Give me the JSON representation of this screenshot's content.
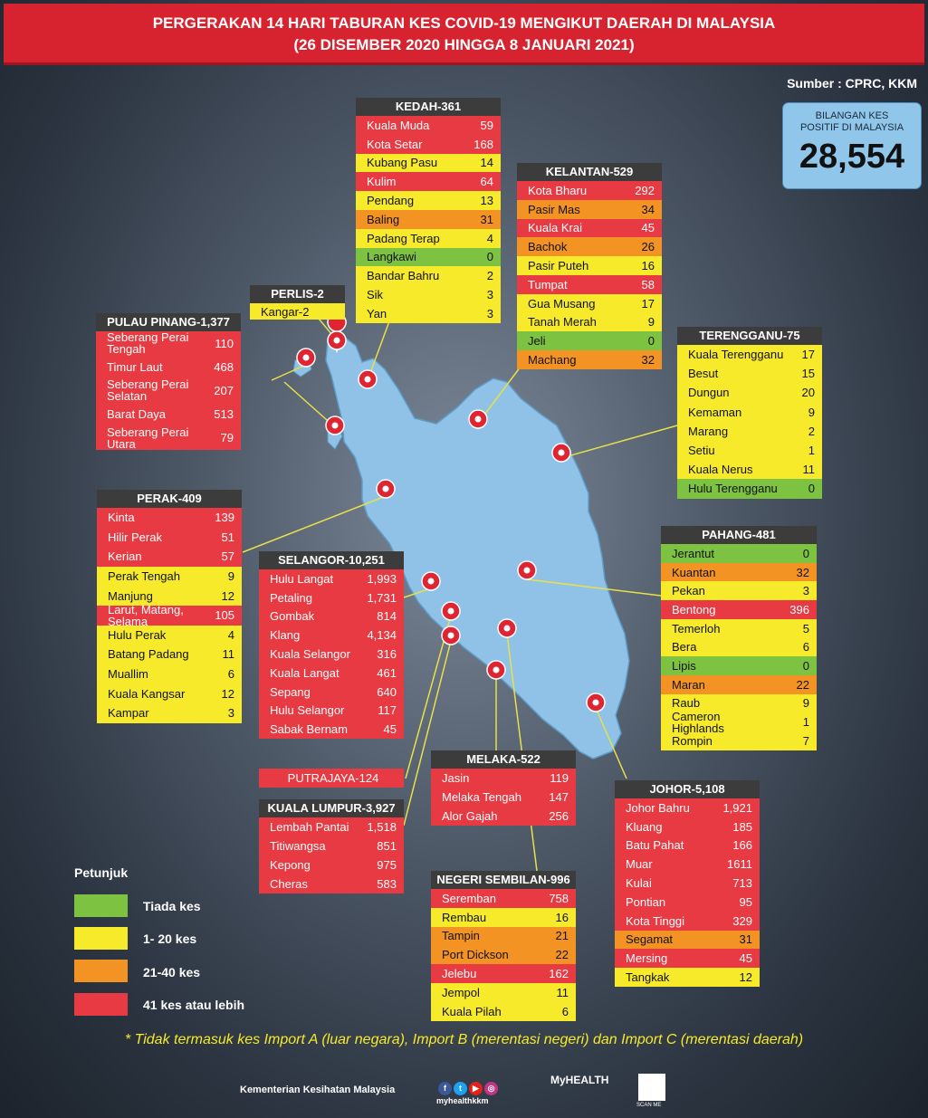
{
  "header": {
    "line1": "PERGERAKAN 14 HARI TABURAN KES COVID-19 MENGIKUT DAERAH DI MALAYSIA",
    "line2": "(26 DISEMBER 2020 HINGGA 8 JANUARI 2021)"
  },
  "source": "Sumber : CPRC, KKM",
  "total": {
    "label_1": "BILANGAN KES",
    "label_2": "POSITIF DI MALAYSIA",
    "value": "28,554"
  },
  "colors": {
    "red": "#e83a42",
    "yellow": "#f6ea2a",
    "orange": "#f39323",
    "green": "#7ec242",
    "map": "#8fc2e6"
  },
  "states": {
    "kedah": {
      "title": "KEDAH-361",
      "rows": [
        {
          "name": "Kuala Muda",
          "value": "59",
          "level": "red"
        },
        {
          "name": "Kota Setar",
          "value": "168",
          "level": "red"
        },
        {
          "name": "Kubang Pasu",
          "value": "14",
          "level": "yel"
        },
        {
          "name": "Kulim",
          "value": "64",
          "level": "red"
        },
        {
          "name": "Pendang",
          "value": "13",
          "level": "yel"
        },
        {
          "name": "Baling",
          "value": "31",
          "level": "org"
        },
        {
          "name": "Padang Terap",
          "value": "4",
          "level": "yel"
        },
        {
          "name": "Langkawi",
          "value": "0",
          "level": "grn"
        },
        {
          "name": "Bandar Bahru",
          "value": "2",
          "level": "yel"
        },
        {
          "name": "Sik",
          "value": "3",
          "level": "yel"
        },
        {
          "name": "Yan",
          "value": "3",
          "level": "yel"
        }
      ]
    },
    "kelantan": {
      "title": "KELANTAN-529",
      "rows": [
        {
          "name": "Kota Bharu",
          "value": "292",
          "level": "red"
        },
        {
          "name": "Pasir Mas",
          "value": "34",
          "level": "org"
        },
        {
          "name": "Kuala Krai",
          "value": "45",
          "level": "red"
        },
        {
          "name": "Bachok",
          "value": "26",
          "level": "org"
        },
        {
          "name": "Pasir Puteh",
          "value": "16",
          "level": "yel"
        },
        {
          "name": "Tumpat",
          "value": "58",
          "level": "red"
        },
        {
          "name": "Gua Musang",
          "value": "17",
          "level": "yel"
        },
        {
          "name": "Tanah Merah",
          "value": "9",
          "level": "yel"
        },
        {
          "name": "Jeli",
          "value": "0",
          "level": "grn"
        },
        {
          "name": "Machang",
          "value": "32",
          "level": "org"
        }
      ]
    },
    "perlis": {
      "title": "PERLIS-2",
      "rows": [
        {
          "name": "Kangar-2",
          "value": "",
          "level": "yel"
        }
      ]
    },
    "pulau_pinang": {
      "title": "PULAU PINANG-1,377",
      "rows": [
        {
          "name": "Seberang Perai Tengah",
          "value": "110",
          "level": "red"
        },
        {
          "name": "Timur Laut",
          "value": "468",
          "level": "red"
        },
        {
          "name": "Seberang Perai Selatan",
          "value": "207",
          "level": "red"
        },
        {
          "name": "Barat Daya",
          "value": "513",
          "level": "red"
        },
        {
          "name": "Seberang Perai Utara",
          "value": "79",
          "level": "red"
        }
      ]
    },
    "terengganu": {
      "title": "TERENGGANU-75",
      "rows": [
        {
          "name": "Kuala Terengganu",
          "value": "17",
          "level": "yel"
        },
        {
          "name": "Besut",
          "value": "15",
          "level": "yel"
        },
        {
          "name": "Dungun",
          "value": "20",
          "level": "yel"
        },
        {
          "name": "Kemaman",
          "value": "9",
          "level": "yel"
        },
        {
          "name": "Marang",
          "value": "2",
          "level": "yel"
        },
        {
          "name": "Setiu",
          "value": "1",
          "level": "yel"
        },
        {
          "name": "Kuala Nerus",
          "value": "11",
          "level": "yel"
        },
        {
          "name": "Hulu Terengganu",
          "value": "0",
          "level": "grn"
        }
      ]
    },
    "perak": {
      "title": "PERAK-409",
      "rows": [
        {
          "name": "Kinta",
          "value": "139",
          "level": "red"
        },
        {
          "name": "Hilir Perak",
          "value": "51",
          "level": "red"
        },
        {
          "name": "Kerian",
          "value": "57",
          "level": "red"
        },
        {
          "name": "Perak Tengah",
          "value": "9",
          "level": "yel"
        },
        {
          "name": "Manjung",
          "value": "12",
          "level": "yel"
        },
        {
          "name": "Larut, Matang, Selama",
          "value": "105",
          "level": "red"
        },
        {
          "name": "Hulu Perak",
          "value": "4",
          "level": "yel"
        },
        {
          "name": "Batang Padang",
          "value": "11",
          "level": "yel"
        },
        {
          "name": "Muallim",
          "value": "6",
          "level": "yel"
        },
        {
          "name": "Kuala Kangsar",
          "value": "12",
          "level": "yel"
        },
        {
          "name": "Kampar",
          "value": "3",
          "level": "yel"
        }
      ]
    },
    "selangor": {
      "title": "SELANGOR-10,251",
      "rows": [
        {
          "name": "Hulu Langat",
          "value": "1,993",
          "level": "red"
        },
        {
          "name": "Petaling",
          "value": "1,731",
          "level": "red"
        },
        {
          "name": "Gombak",
          "value": "814",
          "level": "red"
        },
        {
          "name": "Klang",
          "value": "4,134",
          "level": "red"
        },
        {
          "name": "Kuala Selangor",
          "value": "316",
          "level": "red"
        },
        {
          "name": "Kuala Langat",
          "value": "461",
          "level": "red"
        },
        {
          "name": "Sepang",
          "value": "640",
          "level": "red"
        },
        {
          "name": "Hulu Selangor",
          "value": "117",
          "level": "red"
        },
        {
          "name": "Sabak Bernam",
          "value": "45",
          "level": "red"
        }
      ]
    },
    "pahang": {
      "title": "PAHANG-481",
      "rows": [
        {
          "name": "Jerantut",
          "value": "0",
          "level": "grn"
        },
        {
          "name": "Kuantan",
          "value": "32",
          "level": "org"
        },
        {
          "name": "Pekan",
          "value": "3",
          "level": "yel"
        },
        {
          "name": "Bentong",
          "value": "396",
          "level": "red"
        },
        {
          "name": "Temerloh",
          "value": "5",
          "level": "yel"
        },
        {
          "name": "Bera",
          "value": "6",
          "level": "yel"
        },
        {
          "name": "Lipis",
          "value": "0",
          "level": "grn"
        },
        {
          "name": "Maran",
          "value": "22",
          "level": "org"
        },
        {
          "name": "Raub",
          "value": "9",
          "level": "yel"
        },
        {
          "name": "Cameron Highlands",
          "value": "1",
          "level": "yel"
        },
        {
          "name": "Rompin",
          "value": "7",
          "level": "yel"
        }
      ]
    },
    "putrajaya": {
      "title": "PUTRAJAYA-124"
    },
    "melaka": {
      "title": "MELAKA-522",
      "rows": [
        {
          "name": "Jasin",
          "value": "119",
          "level": "red"
        },
        {
          "name": "Melaka Tengah",
          "value": "147",
          "level": "red"
        },
        {
          "name": "Alor Gajah",
          "value": "256",
          "level": "red"
        }
      ]
    },
    "kuala_lumpur": {
      "title": "KUALA LUMPUR-3,927",
      "rows": [
        {
          "name": "Lembah Pantai",
          "value": "1,518",
          "level": "red"
        },
        {
          "name": "Titiwangsa",
          "value": "851",
          "level": "red"
        },
        {
          "name": "Kepong",
          "value": "975",
          "level": "red"
        },
        {
          "name": "Cheras",
          "value": "583",
          "level": "red"
        }
      ]
    },
    "johor": {
      "title": "JOHOR-5,108",
      "rows": [
        {
          "name": "Johor Bahru",
          "value": "1,921",
          "level": "red"
        },
        {
          "name": "Kluang",
          "value": "185",
          "level": "red"
        },
        {
          "name": "Batu Pahat",
          "value": "166",
          "level": "red"
        },
        {
          "name": "Muar",
          "value": "1611",
          "level": "red"
        },
        {
          "name": "Kulai",
          "value": "713",
          "level": "red"
        },
        {
          "name": "Pontian",
          "value": "95",
          "level": "red"
        },
        {
          "name": "Kota Tinggi",
          "value": "329",
          "level": "red"
        },
        {
          "name": "Segamat",
          "value": "31",
          "level": "org"
        },
        {
          "name": "Mersing",
          "value": "45",
          "level": "red"
        },
        {
          "name": "Tangkak",
          "value": "12",
          "level": "yel"
        }
      ]
    },
    "negeri_sembilan": {
      "title": "NEGERI SEMBILAN-996",
      "rows": [
        {
          "name": "Seremban",
          "value": "758",
          "level": "red"
        },
        {
          "name": "Rembau",
          "value": "16",
          "level": "yel"
        },
        {
          "name": "Tampin",
          "value": "21",
          "level": "org"
        },
        {
          "name": "Port Dickson",
          "value": "22",
          "level": "org"
        },
        {
          "name": "Jelebu",
          "value": "162",
          "level": "red"
        },
        {
          "name": "Jempol",
          "value": "11",
          "level": "yel"
        },
        {
          "name": "Kuala Pilah",
          "value": "6",
          "level": "yel"
        }
      ]
    }
  },
  "legend": {
    "title": "Petunjuk",
    "items": [
      {
        "label": "Tiada kes",
        "color": "#7ec242"
      },
      {
        "label": "1- 20 kes",
        "color": "#f6ea2a"
      },
      {
        "label": "21-40 kes",
        "color": "#f39323"
      },
      {
        "label": "41 kes atau lebih",
        "color": "#e83a42"
      }
    ]
  },
  "footnote": "* Tidak termasuk kes Import A (luar negara),  Import B (merentasi negeri) dan Import C (merentasi daerah)",
  "footer": {
    "ministry": "Kementerian Kesihatan Malaysia",
    "social_handle": "myhealthkkm",
    "brand": "MyHEALTH",
    "qr_label": "SCAN ME",
    "icons": [
      "facebook-icon",
      "twitter-icon",
      "youtube-icon",
      "instagram-icon"
    ]
  }
}
